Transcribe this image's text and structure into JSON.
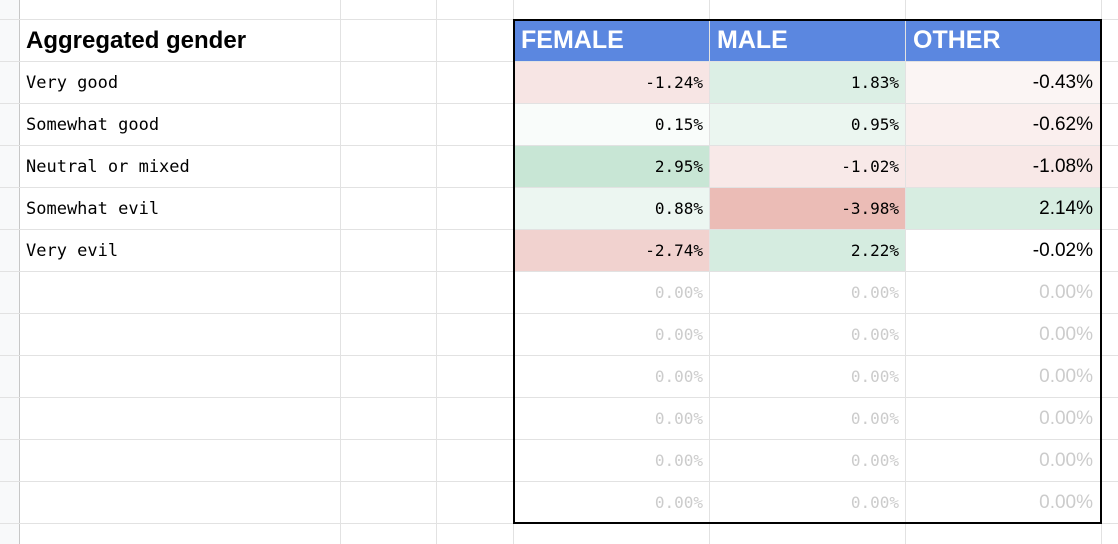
{
  "table": {
    "title": "Aggregated gender",
    "headers": [
      "FEMALE",
      "MALE",
      "OTHER"
    ],
    "header_bg": "#5b87e0",
    "rows": [
      {
        "label": "Very good",
        "female": "-1.24%",
        "male": "1.83%",
        "other": "-0.43%",
        "female_bg": "#f7e5e4",
        "male_bg": "#dcefe5",
        "other_bg": "#fbf5f4"
      },
      {
        "label": "Somewhat good",
        "female": "0.15%",
        "male": "0.95%",
        "other": "-0.62%",
        "female_bg": "#f9fcfa",
        "male_bg": "#ebf6f0",
        "other_bg": "#faefee"
      },
      {
        "label": "Neutral or mixed",
        "female": "2.95%",
        "male": "-1.02%",
        "other": "-1.08%",
        "female_bg": "#c8e6d5",
        "male_bg": "#f8e9e8",
        "other_bg": "#f8e8e7"
      },
      {
        "label": "Somewhat evil",
        "female": "0.88%",
        "male": "-3.98%",
        "other": "2.14%",
        "female_bg": "#ecf6f1",
        "male_bg": "#ebbcb6",
        "other_bg": "#d7ede1"
      },
      {
        "label": "Very evil",
        "female": "-2.74%",
        "male": "2.22%",
        "other": "-0.02%",
        "female_bg": "#f1d2cf",
        "male_bg": "#d5ece0",
        "other_bg": "#ffffff"
      },
      {
        "label": "",
        "female": "0.00%",
        "male": "0.00%",
        "other": "0.00%"
      },
      {
        "label": "",
        "female": "0.00%",
        "male": "0.00%",
        "other": "0.00%"
      },
      {
        "label": "",
        "female": "0.00%",
        "male": "0.00%",
        "other": "0.00%"
      },
      {
        "label": "",
        "female": "0.00%",
        "male": "0.00%",
        "other": "0.00%"
      },
      {
        "label": "",
        "female": "0.00%",
        "male": "0.00%",
        "other": "0.00%"
      },
      {
        "label": "",
        "female": "0.00%",
        "male": "0.00%",
        "other": "0.00%"
      }
    ]
  }
}
